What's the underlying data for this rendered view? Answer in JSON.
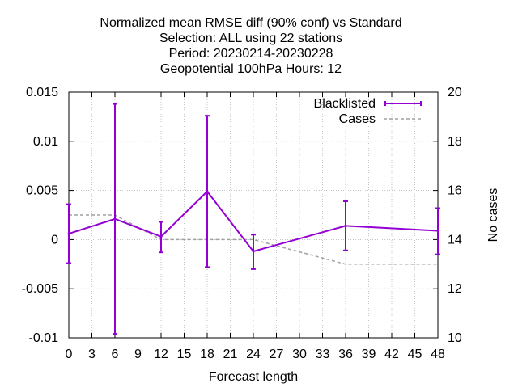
{
  "chart_data": {
    "type": "line",
    "title_lines": [
      "Normalized mean RMSE diff (90% conf) vs Standard",
      "Selection: ALL using    22 stations",
      "Period: 20230214-20230228",
      "Geopotential 100hPa   Hours:  12"
    ],
    "xlabel": "Forecast length",
    "ylabel": "",
    "y2label": "No cases",
    "xlim": [
      0,
      48
    ],
    "ylim": [
      -0.01,
      0.015
    ],
    "y2lim": [
      10,
      20
    ],
    "x_ticks": [
      "0",
      "3",
      "6",
      "9",
      "12",
      "15",
      "18",
      "21",
      "24",
      "27",
      "30",
      "33",
      "36",
      "39",
      "42",
      "45",
      "48"
    ],
    "y_ticks": [
      "-0.01",
      "-0.005",
      "0",
      "0.005",
      "0.01",
      "0.015"
    ],
    "y2_ticks": [
      "10",
      "12",
      "14",
      "16",
      "18",
      "20"
    ],
    "grid": true,
    "legend_position": "top-right",
    "series": [
      {
        "name": "Blacklisted",
        "axis": "y",
        "color": "#9400d3",
        "style": "line-errorbars",
        "x": [
          0,
          6,
          12,
          18,
          24,
          36,
          48
        ],
        "y": [
          0.0006,
          0.0021,
          0.0003,
          0.0049,
          -0.0012,
          0.0014,
          0.0009
        ],
        "y_low": [
          -0.0024,
          -0.0096,
          -0.0013,
          -0.0028,
          -0.003,
          -0.0011,
          -0.0015
        ],
        "y_high": [
          0.0036,
          0.0138,
          0.0018,
          0.0126,
          0.0005,
          0.0039,
          0.0032
        ]
      },
      {
        "name": "Cases",
        "axis": "y2",
        "color": "#a0a0a0",
        "style": "dashed",
        "x": [
          0,
          6,
          12,
          24,
          36,
          48
        ],
        "y": [
          15,
          15,
          14,
          14,
          13,
          13
        ]
      }
    ]
  }
}
